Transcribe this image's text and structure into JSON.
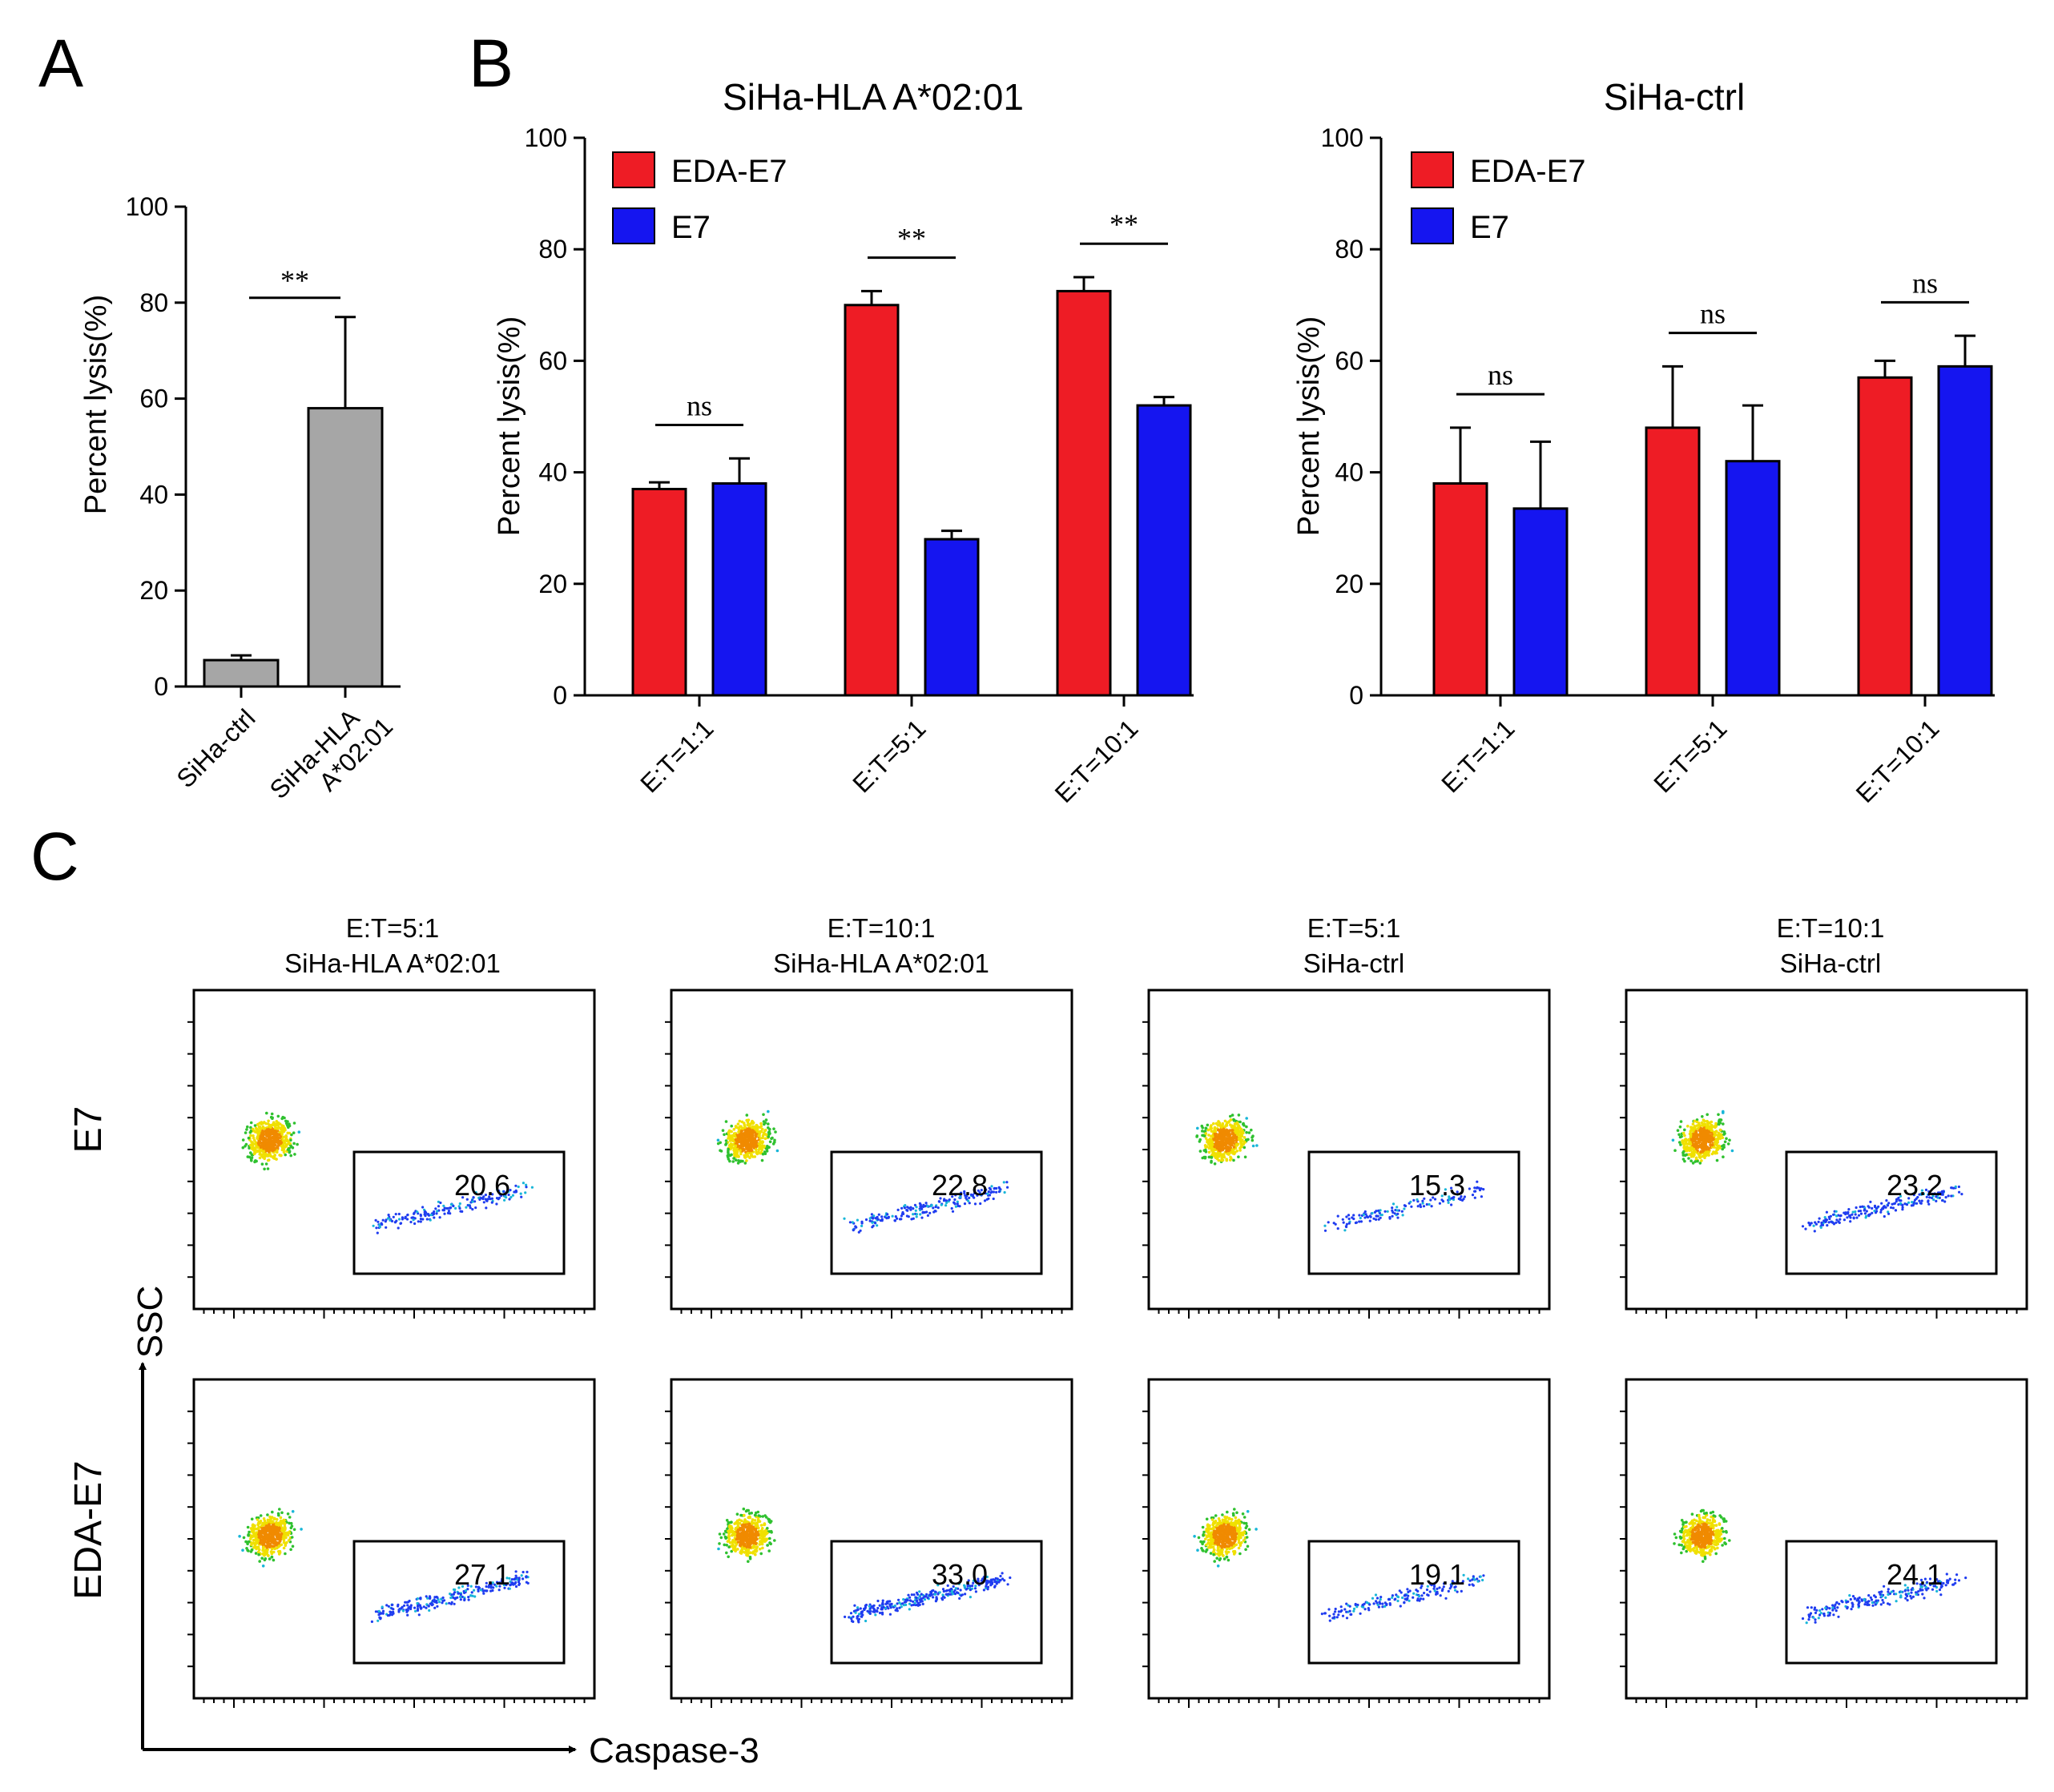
{
  "panels": {
    "A": "A",
    "B": "B",
    "C": "C"
  },
  "colors": {
    "edaE7": "#ee1c25",
    "e7": "#1515f0",
    "gray": "#a6a6a6"
  },
  "chart_data": [
    {
      "id": "A",
      "type": "bar",
      "title": "",
      "ylabel": "Percent lysis(%)",
      "ylim": [
        0,
        100
      ],
      "yticks": [
        "0",
        "20",
        "40",
        "60",
        "80",
        "100"
      ],
      "categories": [
        "SiHa-ctrl",
        "SiHa-HLA A*02:01"
      ],
      "category_lines": [
        [
          "SiHa-ctrl"
        ],
        [
          "SiHa-HLA",
          "A*02:01"
        ]
      ],
      "values": [
        5.5,
        58
      ],
      "errors": [
        1.0,
        19
      ],
      "significance": [
        {
          "between": [
            0,
            1
          ],
          "label": "**"
        }
      ]
    },
    {
      "id": "B1",
      "type": "bar",
      "title": "SiHa-HLA A*02:01",
      "ylabel": "Percent lysis(%)",
      "ylim": [
        0,
        100
      ],
      "yticks": [
        "0",
        "20",
        "40",
        "60",
        "80",
        "100"
      ],
      "categories": [
        "E:T=1:1",
        "E:T=5:1",
        "E:T=10:1"
      ],
      "series": [
        {
          "name": "EDA-E7",
          "values": [
            37,
            70,
            72.5
          ],
          "errors": [
            1.2,
            2.5,
            2.5
          ]
        },
        {
          "name": "E7",
          "values": [
            38,
            28,
            52
          ],
          "errors": [
            4.5,
            1.5,
            1.5
          ]
        }
      ],
      "significance": [
        "ns",
        "**",
        "**"
      ]
    },
    {
      "id": "B2",
      "type": "bar",
      "title": "SiHa-ctrl",
      "ylabel": "Percent lysis(%)",
      "ylim": [
        0,
        100
      ],
      "yticks": [
        "0",
        "20",
        "40",
        "60",
        "80",
        "100"
      ],
      "categories": [
        "E:T=1:1",
        "E:T=5:1",
        "E:T=10:1"
      ],
      "series": [
        {
          "name": "EDA-E7",
          "values": [
            38,
            48,
            57
          ],
          "errors": [
            10,
            11,
            3
          ]
        },
        {
          "name": "E7",
          "values": [
            33.5,
            42,
            59
          ],
          "errors": [
            12,
            10,
            5.5
          ]
        }
      ],
      "significance": [
        "ns",
        "ns",
        "ns"
      ]
    }
  ],
  "flow": {
    "columns": [
      {
        "line1": "E:T=5:1",
        "line2": "SiHa-HLA A*02:01"
      },
      {
        "line1": "E:T=10:1",
        "line2": "SiHa-HLA A*02:01"
      },
      {
        "line1": "E:T=5:1",
        "line2": "SiHa-ctrl"
      },
      {
        "line1": "E:T=10:1",
        "line2": "SiHa-ctrl"
      }
    ],
    "rows": [
      "E7",
      "EDA-E7"
    ],
    "values": [
      [
        "20.6",
        "22.8",
        "15.3",
        "23.2"
      ],
      [
        "27.1",
        "33.0",
        "19.1",
        "24.1"
      ]
    ],
    "xlabel": "Caspase-3",
    "ylabel": "SSC"
  }
}
